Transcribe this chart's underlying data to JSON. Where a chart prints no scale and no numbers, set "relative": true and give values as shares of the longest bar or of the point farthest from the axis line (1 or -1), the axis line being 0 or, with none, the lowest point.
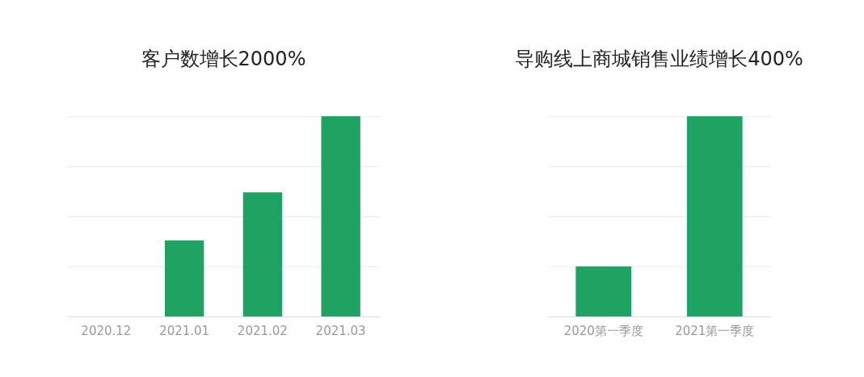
{
  "chart_data": [
    {
      "type": "bar",
      "title": "客户数增长2000%",
      "categories": [
        "2020.12",
        "2021.01",
        "2021.02",
        "2021.03"
      ],
      "values": [
        null,
        0.38,
        0.62,
        1
      ],
      "color": "#1ea362",
      "relative": true,
      "grid": "y",
      "tick_labels": "x"
    },
    {
      "type": "bar",
      "title": "导购线上商城销售业绩增长400%",
      "categories": [
        "2020第一季度",
        "2021第一季度"
      ],
      "values": [
        0.25,
        1
      ],
      "color": "#1ea362",
      "relative": true,
      "grid": "y",
      "tick_labels": "x"
    }
  ]
}
